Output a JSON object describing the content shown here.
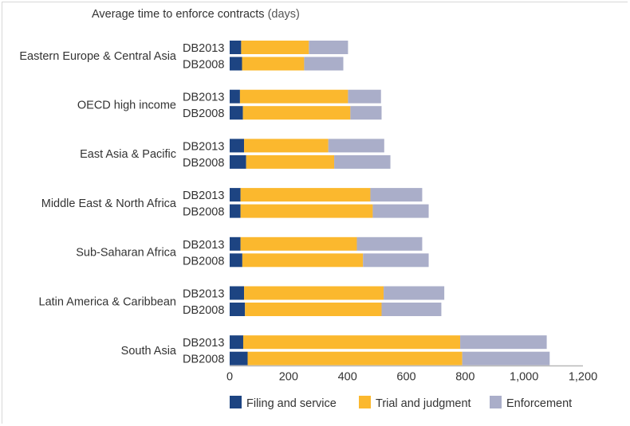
{
  "chart_data": {
    "type": "bar",
    "orientation": "horizontal",
    "stacked": true,
    "title": "Average time to enforce contracts",
    "title_unit": "(days)",
    "xlabel": "",
    "ylabel": "",
    "xlim": [
      0,
      1200
    ],
    "xticks": [
      0,
      200,
      400,
      600,
      800,
      1000,
      1200
    ],
    "xtick_labels": [
      "0",
      "200",
      "400",
      "600",
      "800",
      "1,000",
      "1,200"
    ],
    "grid": false,
    "legend_position": "bottom",
    "series": [
      {
        "name": "Filing and service",
        "color": "#1d4482"
      },
      {
        "name": "Trial and judgment",
        "color": "#fbb82e"
      },
      {
        "name": "Enforcement",
        "color": "#aaaec9"
      }
    ],
    "categories": [
      {
        "region": "Eastern Europe & Central Asia",
        "rows": [
          {
            "year": "DB2013",
            "values": [
              39,
              230,
              133
            ]
          },
          {
            "year": "DB2008",
            "values": [
              42,
              211,
              133
            ]
          }
        ]
      },
      {
        "region": "OECD high income",
        "rows": [
          {
            "year": "DB2013",
            "values": [
              35,
              367,
              112
            ]
          },
          {
            "year": "DB2008",
            "values": [
              45,
              365,
              106
            ]
          }
        ]
      },
      {
        "region": "East Asia & Pacific",
        "rows": [
          {
            "year": "DB2013",
            "values": [
              49,
              286,
              190
            ]
          },
          {
            "year": "DB2008",
            "values": [
              56,
              299,
              191
            ]
          }
        ]
      },
      {
        "region": "Middle East & North Africa",
        "rows": [
          {
            "year": "DB2013",
            "values": [
              37,
              441,
              176
            ]
          },
          {
            "year": "DB2008",
            "values": [
              37,
              449,
              190
            ]
          }
        ]
      },
      {
        "region": "Sub-Saharan Africa",
        "rows": [
          {
            "year": "DB2013",
            "values": [
              37,
              395,
              222
            ]
          },
          {
            "year": "DB2008",
            "values": [
              43,
              410,
              223
            ]
          }
        ]
      },
      {
        "region": "Latin America & Caribbean",
        "rows": [
          {
            "year": "DB2013",
            "values": [
              49,
              474,
              206
            ]
          },
          {
            "year": "DB2008",
            "values": [
              52,
              464,
              203
            ]
          }
        ]
      },
      {
        "region": "South Asia",
        "rows": [
          {
            "year": "DB2013",
            "values": [
              46,
              737,
              294
            ]
          },
          {
            "year": "DB2008",
            "values": [
              61,
              729,
              297
            ]
          }
        ]
      }
    ]
  }
}
